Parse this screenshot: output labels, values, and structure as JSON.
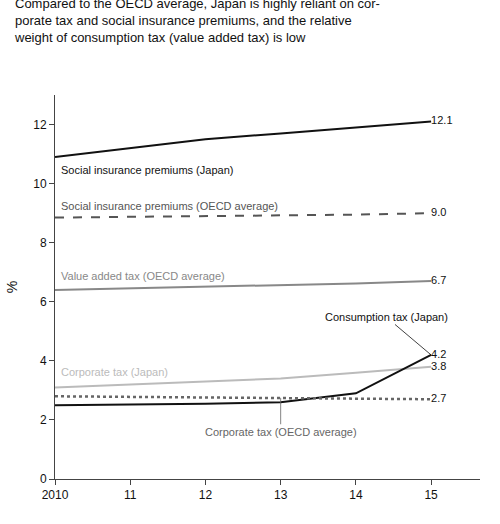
{
  "chart_data": {
    "type": "line",
    "title": "Compared to the OECD average, Japan is highly reliant on cor-\nporate tax and social insurance premiums, and the relative\nweight of consumption tax (value added tax) is low",
    "ylabel": "%",
    "x": [
      2010,
      2011,
      2012,
      2013,
      2014,
      2015
    ],
    "xlim": [
      2010,
      2015.65
    ],
    "xticks": [
      2010,
      {
        "value": 2011,
        "label": "11"
      },
      {
        "value": 2012,
        "label": "12"
      },
      {
        "value": 2013,
        "label": "13"
      },
      {
        "value": 2014,
        "label": "14"
      },
      {
        "value": 2015,
        "label": "15"
      }
    ],
    "ylim": [
      0,
      13
    ],
    "yticks": [
      0,
      2,
      4,
      6,
      8,
      10,
      12
    ],
    "grid": false,
    "data_labels": true,
    "series": [
      {
        "name": "Social insurance premiums (Japan)",
        "color": "#111111",
        "line_style": "solid",
        "values": [
          10.9,
          11.2,
          11.5,
          11.7,
          11.9,
          12.1
        ],
        "value_labels": [
          null,
          null,
          null,
          null,
          null,
          "12.1"
        ]
      },
      {
        "name": "Social insurance premiums (OECD average)",
        "color": "#555555",
        "line_style": "dashed",
        "values": [
          8.85,
          8.87,
          8.9,
          8.92,
          8.95,
          9.0
        ],
        "value_labels": [
          null,
          null,
          null,
          null,
          null,
          "9.0"
        ]
      },
      {
        "name": "Value added tax (OECD average)",
        "color": "#888888",
        "line_style": "solid",
        "values": [
          6.4,
          6.45,
          6.5,
          6.55,
          6.62,
          6.7
        ],
        "value_labels": [
          null,
          null,
          null,
          null,
          null,
          "6.7"
        ]
      },
      {
        "name": "Corporate tax (Japan)",
        "color": "#bbbbbb",
        "line_style": "solid",
        "values": [
          3.1,
          3.2,
          3.3,
          3.4,
          3.6,
          3.8
        ],
        "value_labels": [
          null,
          null,
          null,
          null,
          null,
          "3.8"
        ]
      },
      {
        "name": "Consumption tax (Japan)",
        "color": "#111111",
        "line_style": "solid",
        "values": [
          2.5,
          2.52,
          2.55,
          2.6,
          2.9,
          4.2
        ],
        "value_labels": [
          null,
          null,
          null,
          null,
          null,
          "4.2"
        ]
      },
      {
        "name": "Corporate tax (OECD average)",
        "color": "#666666",
        "line_style": "dotted",
        "values": [
          2.8,
          2.78,
          2.76,
          2.75,
          2.74,
          2.7
        ],
        "value_labels": [
          null,
          null,
          null,
          null,
          null,
          "2.7"
        ]
      }
    ]
  }
}
